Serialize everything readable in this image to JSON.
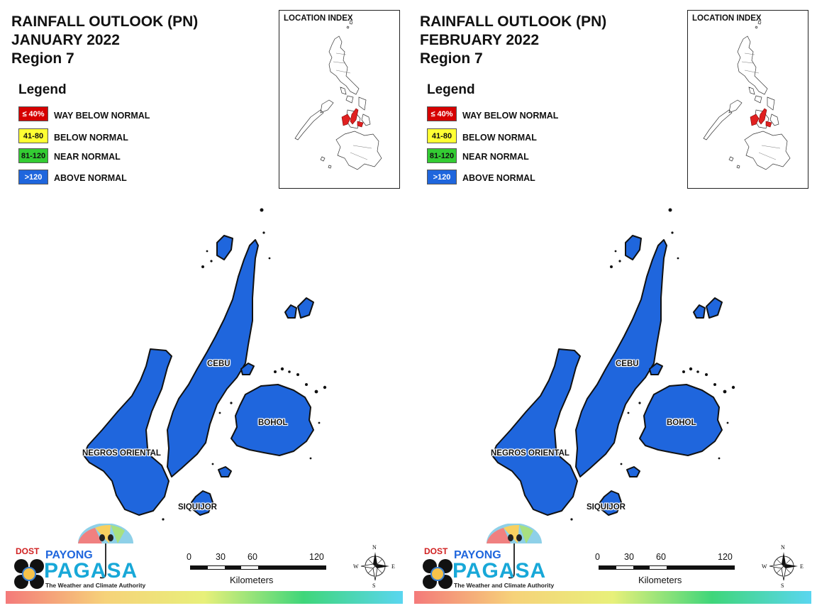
{
  "panels": [
    {
      "title": [
        "RAINFALL OUTLOOK (PN)",
        "JANUARY 2022",
        "Region 7"
      ],
      "legend_title": "Legend",
      "legend": [
        {
          "code": "≤ 40%",
          "label": "WAY BELOW NORMAL",
          "color": "#d60000",
          "text_color": "#ffffff"
        },
        {
          "code": "41-80",
          "label": "BELOW NORMAL",
          "color": "#ffff33",
          "text_color": "#111111"
        },
        {
          "code": "81-120",
          "label": "NEAR NORMAL",
          "color": "#33cc33",
          "text_color": "#111111"
        },
        {
          "code": ">120",
          "label": "ABOVE NORMAL",
          "color": "#1f66dd",
          "text_color": "#ffffff"
        }
      ],
      "location_index_title": "LOCATION INDEX",
      "places": {
        "cebu": "CEBU",
        "bohol": "BOHOL",
        "negros": "NEGROS ORIENTAL",
        "siquijor": "SIQUIJOR"
      },
      "province_fill": "#1f66dd",
      "scale": {
        "ticks": [
          "0",
          "30",
          "60",
          "120"
        ],
        "unit": "Kilometers"
      },
      "compass": {
        "n": "N",
        "s": "S",
        "e": "E",
        "w": "W"
      },
      "logo": {
        "dost": "DOST",
        "payong": "PAYONG",
        "pagasa": "PAGASA",
        "tagline": "The Weather and Climate Authority"
      }
    },
    {
      "title": [
        "RAINFALL OUTLOOK (PN)",
        "FEBRUARY 2022",
        "Region 7"
      ],
      "legend_title": "Legend",
      "legend": [
        {
          "code": "≤ 40%",
          "label": "WAY BELOW NORMAL",
          "color": "#d60000",
          "text_color": "#ffffff"
        },
        {
          "code": "41-80",
          "label": "BELOW NORMAL",
          "color": "#ffff33",
          "text_color": "#111111"
        },
        {
          "code": "81-120",
          "label": "NEAR NORMAL",
          "color": "#33cc33",
          "text_color": "#111111"
        },
        {
          "code": ">120",
          "label": "ABOVE NORMAL",
          "color": "#1f66dd",
          "text_color": "#ffffff"
        }
      ],
      "location_index_title": "LOCATION INDEX",
      "places": {
        "cebu": "CEBU",
        "bohol": "BOHOL",
        "negros": "NEGROS ORIENTAL",
        "siquijor": "SIQUIJOR"
      },
      "province_fill": "#1f66dd",
      "scale": {
        "ticks": [
          "0",
          "30",
          "60",
          "120"
        ],
        "unit": "Kilometers"
      },
      "compass": {
        "n": "N",
        "s": "S",
        "e": "E",
        "w": "W"
      },
      "logo": {
        "dost": "DOST",
        "payong": "PAYONG",
        "pagasa": "PAGASA",
        "tagline": "The Weather and Climate Authority"
      }
    }
  ],
  "highlight_color": "#e02020",
  "footer_gradient": [
    "#f47a7a",
    "#f6d27a",
    "#e8f07a",
    "#3fd67a",
    "#5ad6f0"
  ]
}
